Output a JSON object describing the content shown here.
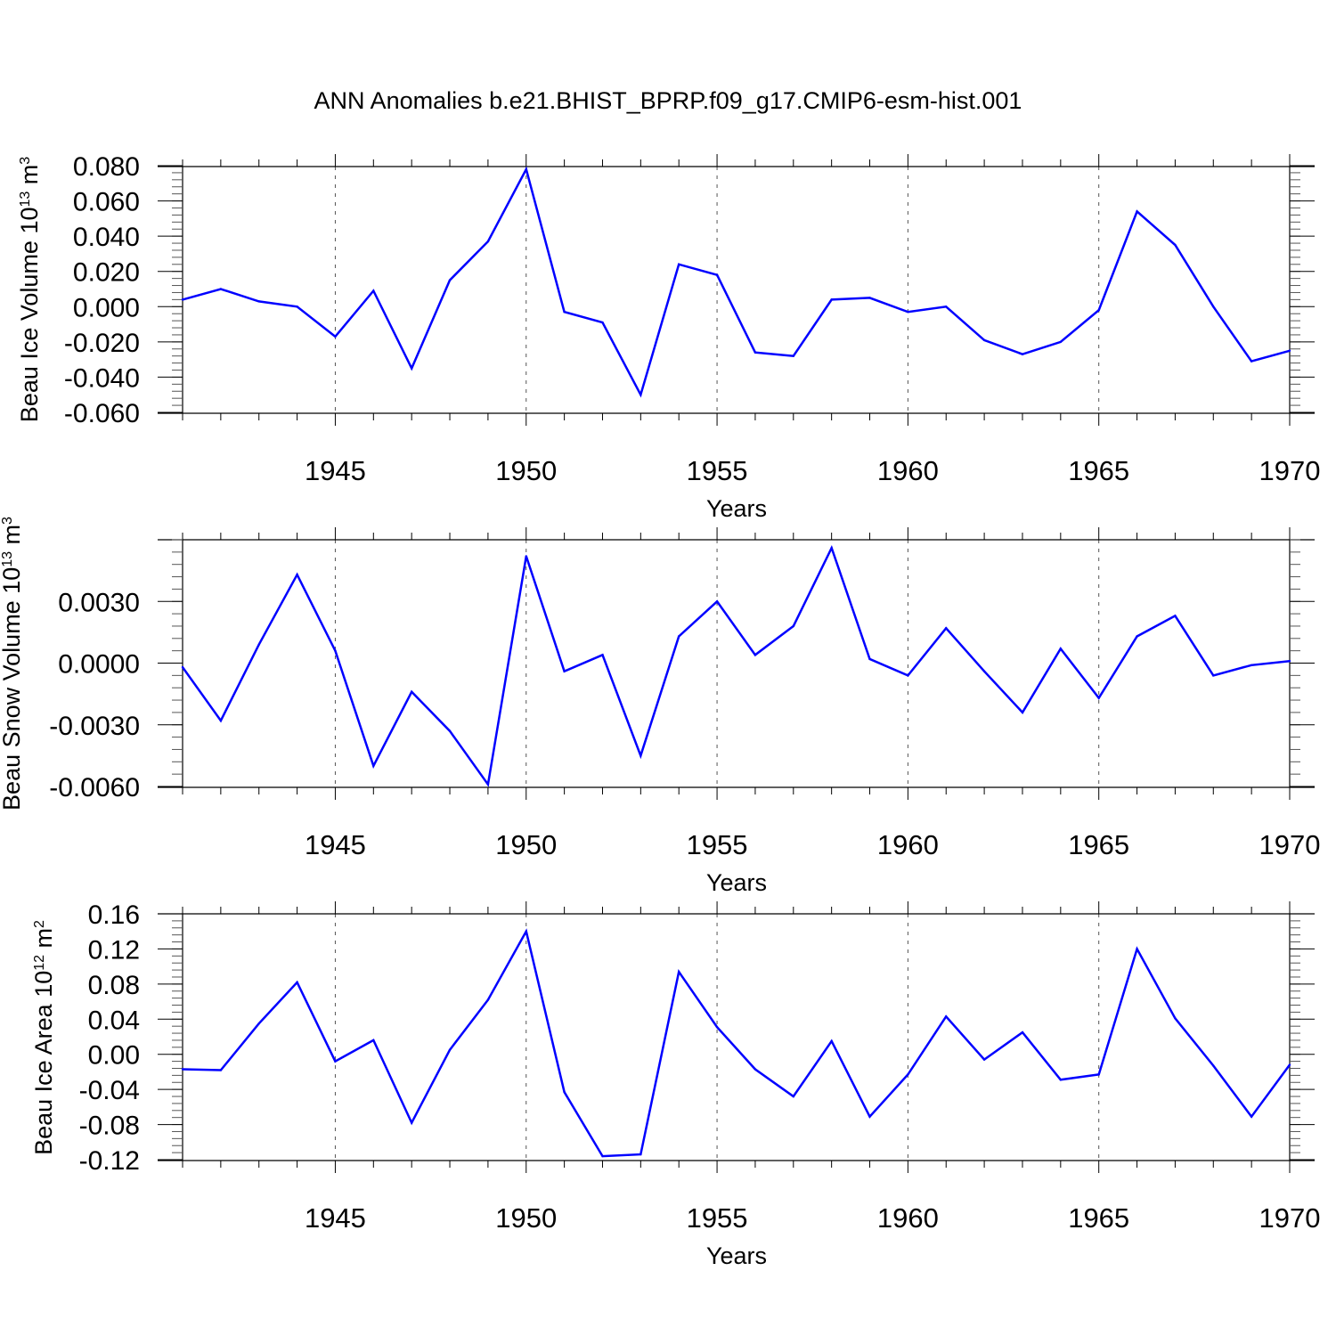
{
  "title": "ANN Anomalies b.e21.BHIST_BPRP.f09_g17.CMIP6-esm-hist.001",
  "colors": {
    "series": "#0000ff",
    "axis": "#000000",
    "grid": "#555555"
  },
  "chart_data": [
    {
      "type": "line",
      "xlabel": "Years",
      "ylabel": "Beau Ice Volume",
      "ylabel_unit": {
        "base": "10",
        "exp": "13",
        "unit": "m",
        "unit_exp": "3"
      },
      "xlim": [
        1941,
        1970
      ],
      "ylim": [
        -0.06,
        0.08
      ],
      "x_ticks": [
        1945,
        1950,
        1955,
        1960,
        1965,
        1970
      ],
      "y_ticks": [
        "0.080",
        "0.060",
        "0.040",
        "0.020",
        "0.000",
        "-0.020",
        "-0.040",
        "-0.060"
      ],
      "y_tick_values": [
        0.08,
        0.06,
        0.04,
        0.02,
        0.0,
        -0.02,
        -0.04,
        -0.06
      ],
      "grid": "vertical dashed at major x ticks",
      "x": [
        1941,
        1942,
        1943,
        1944,
        1945,
        1946,
        1947,
        1948,
        1949,
        1950,
        1951,
        1952,
        1953,
        1954,
        1955,
        1956,
        1957,
        1958,
        1959,
        1960,
        1961,
        1962,
        1963,
        1964,
        1965,
        1966,
        1967,
        1968,
        1969,
        1970
      ],
      "values": [
        0.004,
        0.01,
        0.003,
        0.0,
        -0.017,
        0.009,
        -0.035,
        0.015,
        0.037,
        0.078,
        -0.003,
        -0.009,
        -0.05,
        0.024,
        0.018,
        -0.026,
        -0.028,
        0.004,
        0.005,
        -0.003,
        0.0,
        -0.019,
        -0.027,
        -0.02,
        -0.002,
        0.054,
        0.035,
        0.0,
        -0.031,
        -0.025
      ]
    },
    {
      "type": "line",
      "xlabel": "Years",
      "ylabel": "Beau Snow Volume",
      "ylabel_unit": {
        "base": "10",
        "exp": "13",
        "unit": "m",
        "unit_exp": "3"
      },
      "xlim": [
        1941,
        1970
      ],
      "ylim": [
        -0.006,
        0.006
      ],
      "x_ticks": [
        1945,
        1950,
        1955,
        1960,
        1965,
        1970
      ],
      "y_ticks": [
        "0.0030",
        "0.0000",
        "-0.0030",
        "-0.0060"
      ],
      "y_tick_values": [
        0.003,
        0.0,
        -0.003,
        -0.006
      ],
      "grid": "vertical dashed at major x ticks",
      "x": [
        1941,
        1942,
        1943,
        1944,
        1945,
        1946,
        1947,
        1948,
        1949,
        1950,
        1951,
        1952,
        1953,
        1954,
        1955,
        1956,
        1957,
        1958,
        1959,
        1960,
        1961,
        1962,
        1963,
        1964,
        1965,
        1966,
        1967,
        1968,
        1969,
        1970
      ],
      "values": [
        -0.0002,
        -0.0028,
        0.0009,
        0.0043,
        0.0006,
        -0.005,
        -0.0014,
        -0.0033,
        -0.0059,
        0.0052,
        -0.0004,
        0.0004,
        -0.0045,
        0.0013,
        0.003,
        0.0004,
        0.0018,
        0.0056,
        0.0002,
        -0.0006,
        0.0017,
        -0.0004,
        -0.0024,
        0.0007,
        -0.0017,
        0.0013,
        0.0023,
        -0.0006,
        -0.0001,
        0.0001
      ]
    },
    {
      "type": "line",
      "xlabel": "Years",
      "ylabel": "Beau Ice Area",
      "ylabel_unit": {
        "base": "10",
        "exp": "12",
        "unit": "m",
        "unit_exp": "2"
      },
      "xlim": [
        1941,
        1970
      ],
      "ylim": [
        -0.12,
        0.16
      ],
      "x_ticks": [
        1945,
        1950,
        1955,
        1960,
        1965,
        1970
      ],
      "y_ticks": [
        "0.16",
        "0.12",
        "0.08",
        "0.04",
        "0.00",
        "-0.04",
        "-0.08",
        "-0.12"
      ],
      "y_tick_values": [
        0.16,
        0.12,
        0.08,
        0.04,
        0.0,
        -0.04,
        -0.08,
        -0.12
      ],
      "grid": "vertical dashed at major x ticks",
      "x": [
        1941,
        1942,
        1943,
        1944,
        1945,
        1946,
        1947,
        1948,
        1949,
        1950,
        1951,
        1952,
        1953,
        1954,
        1955,
        1956,
        1957,
        1958,
        1959,
        1960,
        1961,
        1962,
        1963,
        1964,
        1965,
        1966,
        1967,
        1968,
        1969,
        1970
      ],
      "values": [
        -0.017,
        -0.018,
        0.035,
        0.082,
        -0.008,
        0.016,
        -0.078,
        0.005,
        0.062,
        0.14,
        -0.043,
        -0.116,
        -0.114,
        0.094,
        0.031,
        -0.017,
        -0.048,
        0.015,
        -0.071,
        -0.023,
        0.043,
        -0.006,
        0.025,
        -0.029,
        -0.023,
        0.12,
        0.041,
        -0.013,
        -0.071,
        -0.012
      ]
    }
  ]
}
